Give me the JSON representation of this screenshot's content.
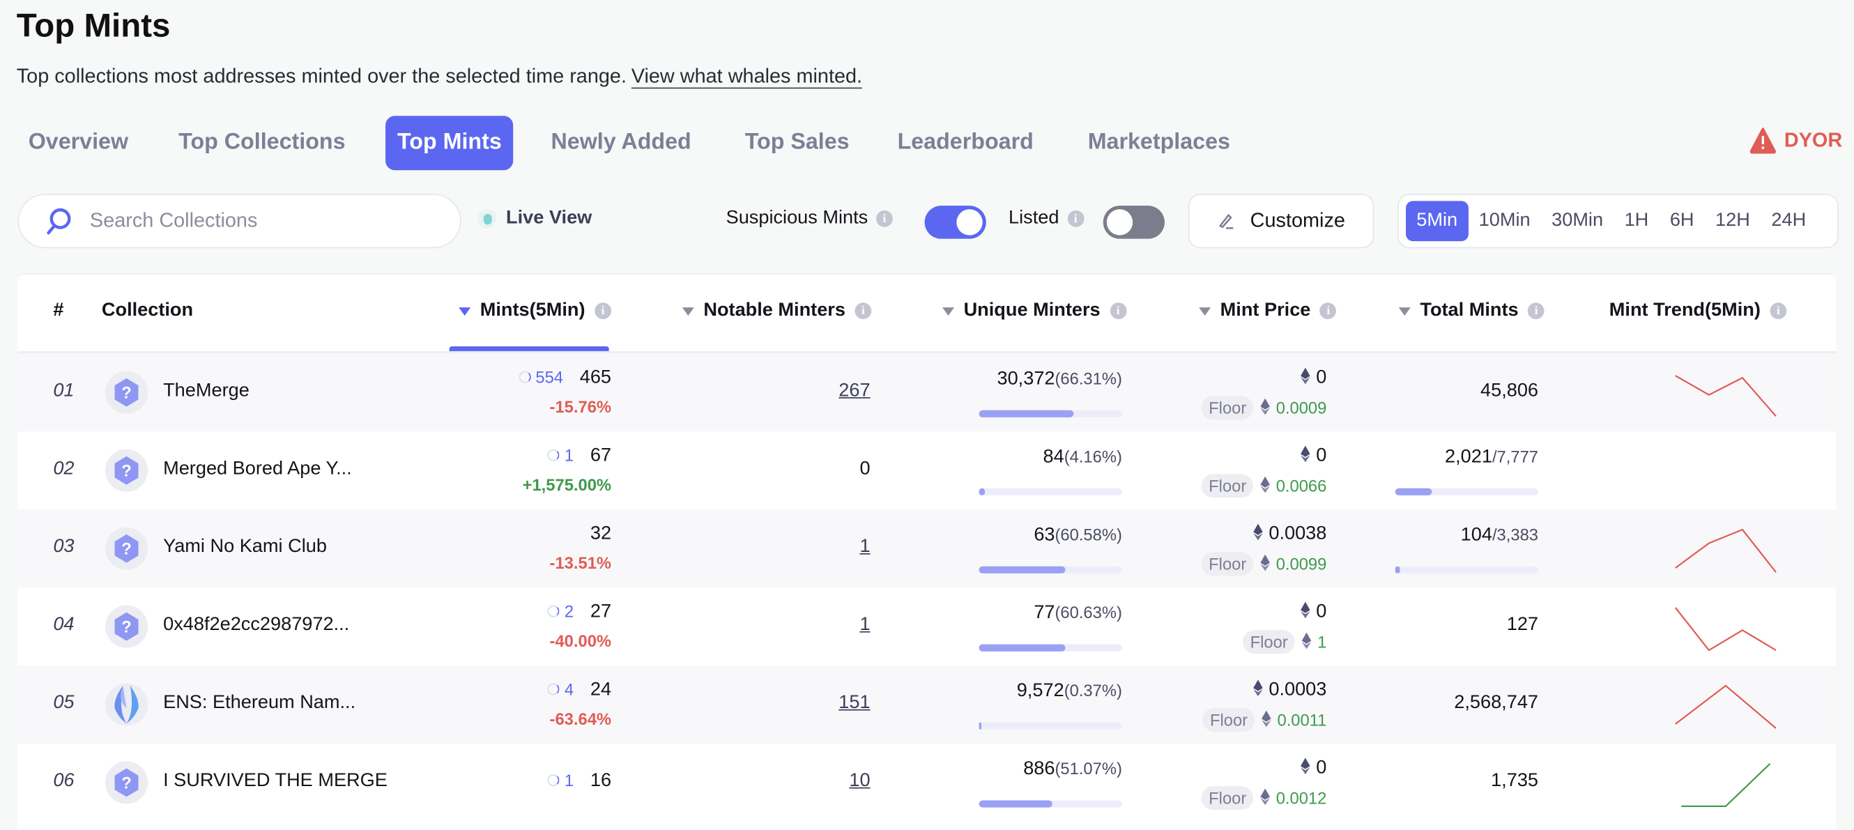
{
  "page": {
    "title": "Top Mints",
    "subtitle": "Top collections most addresses minted over the selected time range.",
    "subtitle_link": "View what whales minted."
  },
  "tabs": [
    {
      "label": "Overview",
      "active": false
    },
    {
      "label": "Top Collections",
      "active": false
    },
    {
      "label": "Top Mints",
      "active": true
    },
    {
      "label": "Newly Added",
      "active": false
    },
    {
      "label": "Top Sales",
      "active": false
    },
    {
      "label": "Leaderboard",
      "active": false
    },
    {
      "label": "Marketplaces",
      "active": false
    }
  ],
  "dyor": {
    "label": "DYOR",
    "icon": "warning-icon",
    "color": "#e05c55"
  },
  "controls": {
    "search_placeholder": "Search Collections",
    "live_view": "Live View",
    "suspicious_label": "Suspicious Mints",
    "suspicious_on": true,
    "listed_label": "Listed",
    "listed_on": false,
    "customize_label": "Customize",
    "ranges": [
      "5Min",
      "10Min",
      "30Min",
      "1H",
      "6H",
      "12H",
      "24H"
    ],
    "active_range": "5Min"
  },
  "colors": {
    "accent": "#5b67f1",
    "negative": "#e05c55",
    "positive": "#3f9a4c"
  },
  "table": {
    "headers": {
      "rank": "#",
      "collection": "Collection",
      "mints": "Mints(5Min)",
      "notable": "Notable Minters",
      "unique": "Unique Minters",
      "price": "Mint Price",
      "total": "Total Mints",
      "trend": "Mint Trend(5Min)"
    },
    "floor_label": "Floor",
    "rows": [
      {
        "rank": "01",
        "name": "TheMerge",
        "icon": "question-hexagon-icon",
        "suspicious": "554",
        "mints": "465",
        "change": "-15.76%",
        "change_dir": "neg",
        "notable": "267",
        "notable_link": true,
        "unique": "30,372",
        "unique_pct": "(66.31%)",
        "unique_frac": 0.6631,
        "price": "0",
        "floor": "0.0009",
        "total": "45,806",
        "supply": "",
        "total_frac": null,
        "trend": [
          0.95,
          0.5,
          0.9,
          0
        ],
        "trend_dir": "neg"
      },
      {
        "rank": "02",
        "name": "Merged Bored Ape Y...",
        "icon": "question-hexagon-icon",
        "suspicious": "1",
        "mints": "67",
        "change": "+1,575.00%",
        "change_dir": "pos",
        "notable": "0",
        "notable_link": false,
        "unique": "84",
        "unique_pct": "(4.16%)",
        "unique_frac": 0.0416,
        "price": "0",
        "floor": "0.0066",
        "total": "2,021",
        "supply": "/7,777",
        "total_frac": 0.26,
        "trend": [],
        "trend_dir": "neg"
      },
      {
        "rank": "03",
        "name": "Yami No Kami Club",
        "icon": "question-hexagon-icon",
        "suspicious": "",
        "mints": "32",
        "change": "-13.51%",
        "change_dir": "neg",
        "notable": "1",
        "notable_link": true,
        "unique": "63",
        "unique_pct": "(60.58%)",
        "unique_frac": 0.6058,
        "price": "0.0038",
        "floor": "0.0099",
        "total": "104",
        "supply": "/3,383",
        "total_frac": 0.031,
        "trend": [
          0.1,
          0.68,
          1,
          0
        ],
        "trend_dir": "neg"
      },
      {
        "rank": "04",
        "name": "0x48f2e2cc2987972...",
        "icon": "question-hexagon-icon",
        "suspicious": "2",
        "mints": "27",
        "change": "-40.00%",
        "change_dir": "neg",
        "notable": "1",
        "notable_link": true,
        "unique": "77",
        "unique_pct": "(60.63%)",
        "unique_frac": 0.6063,
        "price": "0",
        "floor": "1",
        "total": "127",
        "supply": "",
        "total_frac": null,
        "trend": [
          1,
          0,
          0.47,
          0
        ],
        "trend_dir": "neg"
      },
      {
        "rank": "05",
        "name": "ENS: Ethereum Nam...",
        "icon": "ens-logo-icon",
        "suspicious": "4",
        "mints": "24",
        "change": "-63.64%",
        "change_dir": "neg",
        "notable": "151",
        "notable_link": true,
        "unique": "9,572",
        "unique_pct": "(0.37%)",
        "unique_frac": 0.0037,
        "price": "0.0003",
        "floor": "0.0011",
        "total": "2,568,747",
        "supply": "",
        "total_frac": null,
        "trend": [
          0.1,
          1,
          0
        ],
        "trend_dir": "neg"
      },
      {
        "rank": "06",
        "name": "I SURVIVED THE MERGE",
        "icon": "question-hexagon-icon",
        "suspicious": "1",
        "mints": "16",
        "change": "",
        "change_dir": "",
        "notable": "10",
        "notable_link": true,
        "unique": "886",
        "unique_pct": "(51.07%)",
        "unique_frac": 0.5107,
        "price": "0",
        "floor": "0.0012",
        "total": "1,735",
        "supply": "",
        "total_frac": null,
        "trend": [
          0,
          0,
          1
        ],
        "trend_dir": "pos"
      }
    ]
  }
}
